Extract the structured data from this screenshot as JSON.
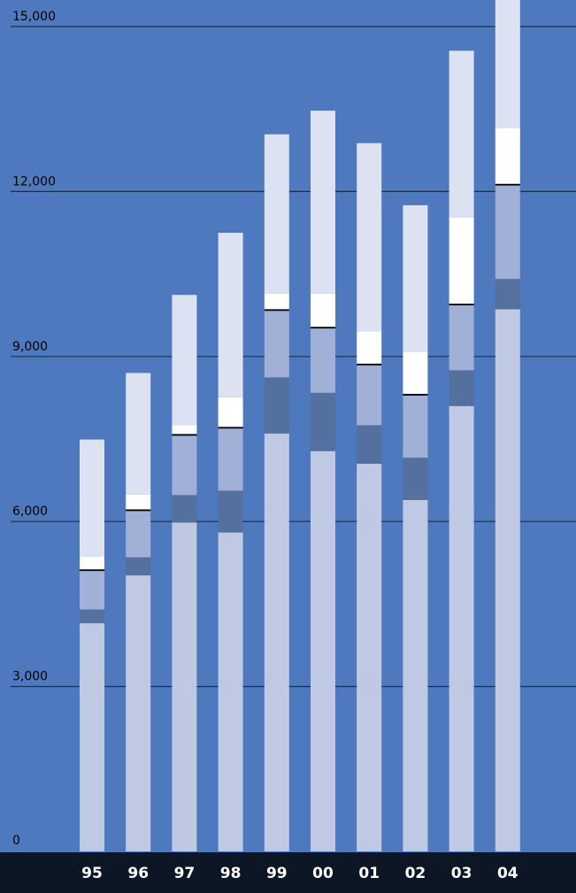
{
  "chart_data": {
    "type": "bar",
    "stacked": true,
    "title": "",
    "xlabel": "",
    "ylabel": "",
    "ylim": [
      0,
      15000
    ],
    "yticks": [
      0,
      3000,
      6000,
      9000,
      12000,
      15000
    ],
    "ytick_labels": [
      "0",
      "3,000",
      "6,000",
      "9,000",
      "12,000",
      "15,000"
    ],
    "grid": true,
    "legend": "none",
    "categories": [
      "95",
      "96",
      "97",
      "98",
      "99",
      "00",
      "01",
      "02",
      "03",
      "04"
    ],
    "series": [
      {
        "values": [
          4150,
          5020,
          5980,
          5800,
          7600,
          7280,
          7050,
          6390,
          8100,
          9860
        ],
        "color": "#c0c9e3"
      },
      {
        "values": [
          250,
          330,
          500,
          760,
          1020,
          1060,
          700,
          770,
          650,
          550
        ],
        "color": "#54709e"
      },
      {
        "values": [
          700,
          840,
          1080,
          1130,
          1210,
          1170,
          1090,
          1130,
          1180,
          1700
        ],
        "color": "#a1b0d6"
      },
      {
        "values": [
          30,
          30,
          30,
          30,
          30,
          30,
          30,
          30,
          30,
          30
        ],
        "color": "#000000"
      },
      {
        "values": [
          230,
          270,
          160,
          540,
          280,
          600,
          590,
          770,
          1570,
          1020
        ],
        "color": "#ffffff"
      },
      {
        "values": [
          2130,
          2210,
          2370,
          2990,
          2900,
          3330,
          3420,
          2660,
          3030,
          2400
        ],
        "color": "#dde2f2"
      }
    ]
  },
  "colors": {
    "background": "#4f79be",
    "gridline": "#1f2c47",
    "axis_band": "#0d1624"
  }
}
